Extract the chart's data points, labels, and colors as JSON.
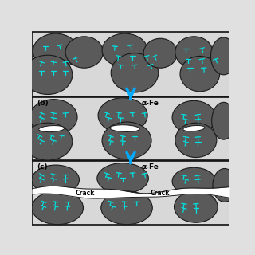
{
  "bg_light": "#d8d8d8",
  "bg_panel": "#b8b8b8",
  "grain_color": "#5a5a5a",
  "grain_edge": "#1a1a1a",
  "crack_fill": "#ffffff",
  "disloc_color": "#00e0e0",
  "arrow_color": "#00aaff",
  "text_color": "#000000",
  "alpha_fe": "α-Fe",
  "crack_label": "Crack",
  "label_b": "(b)",
  "label_c": "(c)",
  "panel_A": [
    0.0,
    0.665,
    1.0,
    0.995
  ],
  "panel_B": [
    0.0,
    0.34,
    1.0,
    0.66
  ],
  "panel_C": [
    0.0,
    0.01,
    1.0,
    0.335
  ]
}
